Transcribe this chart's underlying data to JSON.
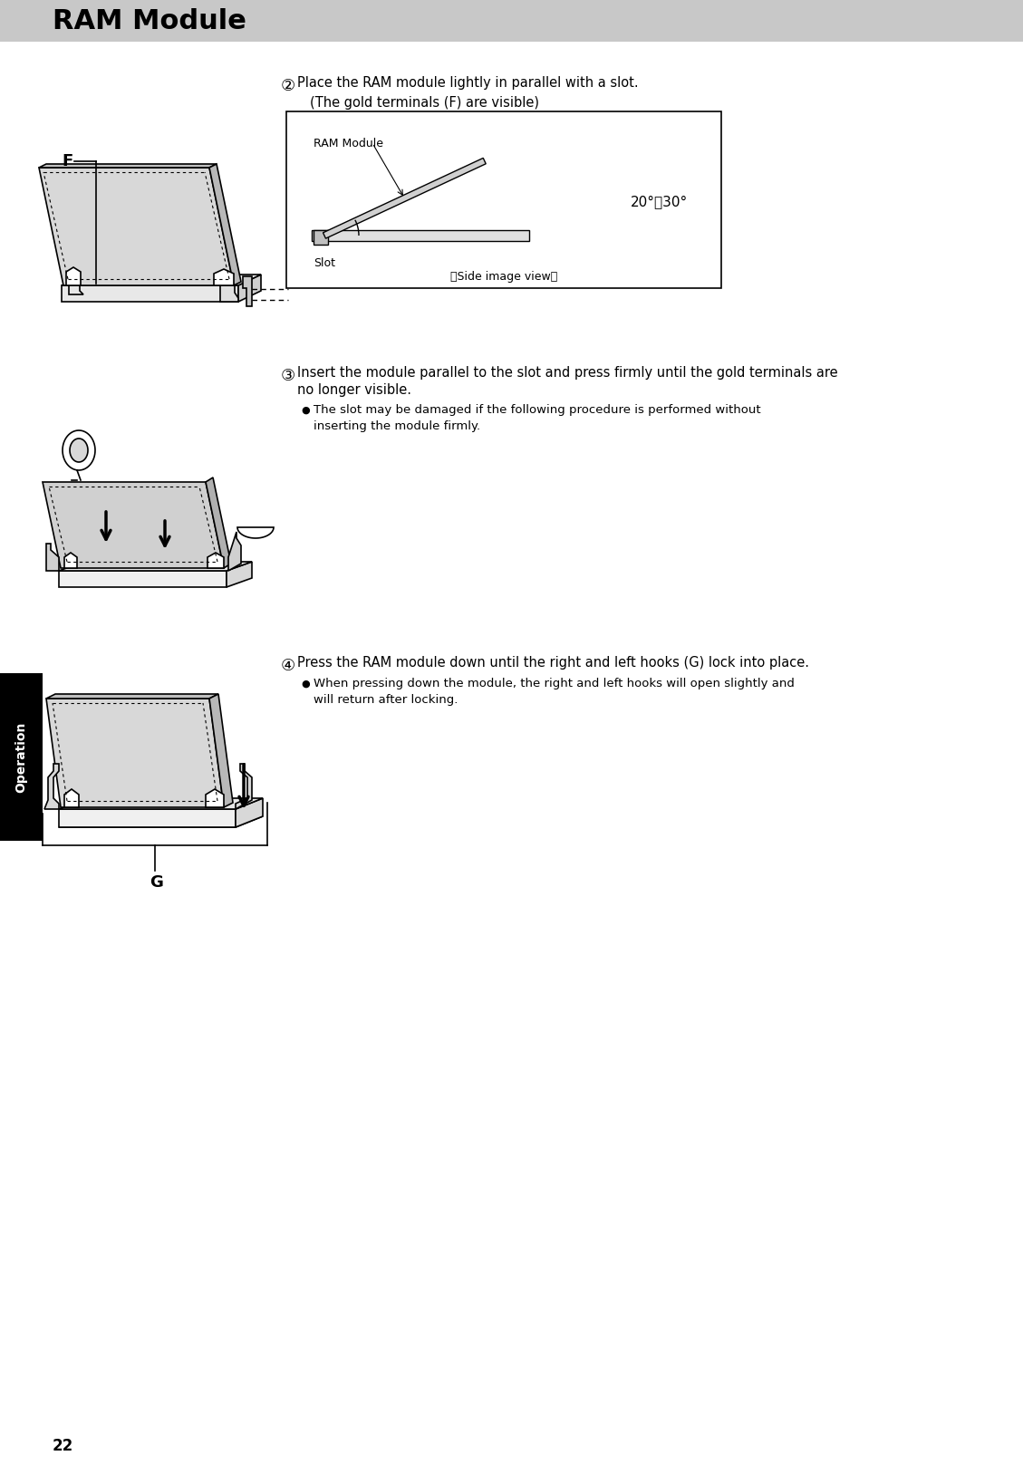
{
  "title": "RAM Module",
  "title_bg": "#c8c8c8",
  "title_color": "#000000",
  "title_fontsize": 22,
  "page_number": "22",
  "sidebar_text": "Operation",
  "sidebar_bg": "#000000",
  "sidebar_color": "#ffffff",
  "bg_color": "#ffffff",
  "step2_circle": "②",
  "step2_text_line1": "Place the RAM module lightly in parallel with a slot.",
  "step2_text_line2": "(The gold terminals (F) are visible)",
  "step3_circle": "③",
  "step3_text_line1": "Insert the module parallel to the slot and press firmly until the gold terminals are",
  "step3_text_line2": "no longer visible.",
  "step3_bullet": "The slot may be damaged if the following procedure is performed without\ninserting the module firmly.",
  "step4_circle": "④",
  "step4_text": "Press the RAM module down until the right and left hooks (G) lock into place.",
  "step4_bullet": "When pressing down the module, the right and left hooks will open slightly and\nwill return after locking.",
  "label_F": "F",
  "label_G": "G",
  "diagram_label_ram": "RAM Module",
  "diagram_label_slot": "Slot",
  "diagram_label_side": "（Side image view）",
  "diagram_angle": "20°～30°",
  "body_fontsize": 10.5,
  "small_fontsize": 9.5,
  "bullet_char": "●"
}
